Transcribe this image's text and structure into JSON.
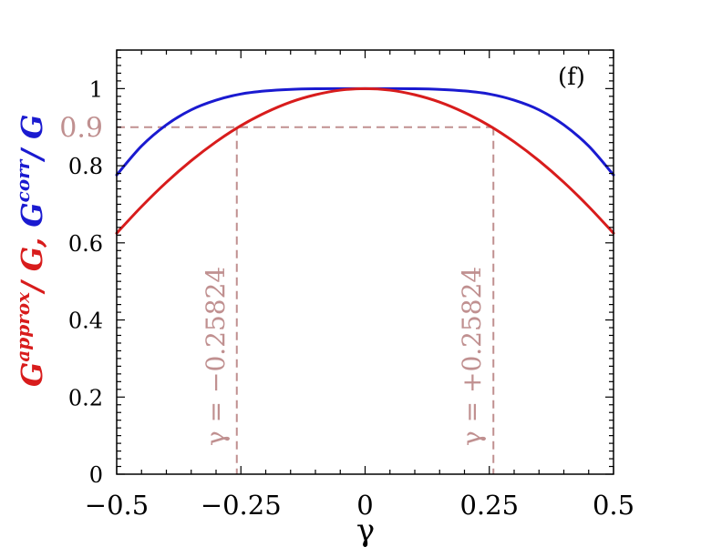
{
  "chart_data": {
    "type": "line",
    "panel_label": "(f)",
    "xlabel": "γ",
    "ylabel_parts": [
      {
        "text": "G",
        "color": "#d81c1c",
        "style": "base"
      },
      {
        "text": "approx",
        "color": "#d81c1c",
        "style": "sup"
      },
      {
        "text": "/ G, ",
        "color": "#d81c1c",
        "style": "base"
      },
      {
        "text": "G",
        "color": "#1a1ad0",
        "style": "base"
      },
      {
        "text": "corr",
        "color": "#1a1ad0",
        "style": "sup"
      },
      {
        "text": "/ G",
        "color": "#1a1ad0",
        "style": "base"
      }
    ],
    "xlim": [
      -0.5,
      0.5
    ],
    "ylim": [
      0,
      1.1
    ],
    "xticks": [
      -0.5,
      -0.25,
      0,
      0.25,
      0.5
    ],
    "xtick_labels": [
      "−0.5",
      "−0.25",
      "0",
      "0.25",
      "0.5"
    ],
    "yticks": [
      0,
      0.2,
      0.4,
      0.6,
      0.8,
      1
    ],
    "ytick_labels": [
      "0",
      "0.2",
      "0.4",
      "0.6",
      "0.8",
      "1"
    ],
    "grid": false,
    "series": [
      {
        "color": "#1a1ad0",
        "x": [
          -0.5,
          -0.45,
          -0.4,
          -0.35,
          -0.3,
          -0.25,
          -0.2,
          -0.15,
          -0.1,
          -0.05,
          0,
          0.05,
          0.1,
          0.15,
          0.2,
          0.25,
          0.3,
          0.35,
          0.4,
          0.45,
          0.5
        ],
        "y": [
          0.776,
          0.851,
          0.906,
          0.945,
          0.97,
          0.986,
          0.994,
          0.998,
          0.9997,
          1.0,
          1.0,
          1.0,
          0.9997,
          0.998,
          0.994,
          0.986,
          0.97,
          0.945,
          0.906,
          0.851,
          0.776
        ]
      },
      {
        "color": "#d81c1c",
        "x": [
          -0.5,
          -0.45,
          -0.4,
          -0.35,
          -0.3,
          -0.25,
          -0.2,
          -0.15,
          -0.1,
          -0.05,
          0,
          0.05,
          0.1,
          0.15,
          0.2,
          0.25,
          0.3,
          0.35,
          0.4,
          0.45,
          0.5
        ],
        "y": [
          0.625,
          0.694,
          0.757,
          0.813,
          0.862,
          0.904,
          0.938,
          0.965,
          0.984,
          0.996,
          1.0,
          0.996,
          0.984,
          0.965,
          0.938,
          0.904,
          0.862,
          0.813,
          0.757,
          0.694,
          0.625
        ]
      }
    ],
    "reference_lines": {
      "color": "#c09090",
      "hline": {
        "y": 0.9,
        "x_from": -0.5,
        "x_to": 0.25824,
        "label": "0.9"
      },
      "vlines": [
        {
          "x": -0.25824,
          "y_to": 0.9,
          "label": "γ = −0.25824"
        },
        {
          "x": 0.25824,
          "y_to": 0.9,
          "label": "γ = +0.25824"
        }
      ]
    }
  }
}
